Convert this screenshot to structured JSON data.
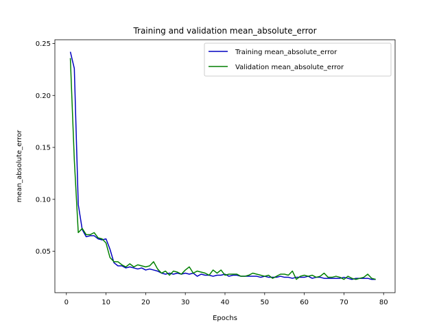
{
  "chart_data": {
    "type": "line",
    "title": "Training and validation mean_absolute_error",
    "xlabel": "Epochs",
    "ylabel": "mean_absolute_error",
    "xlim": [
      -2.9,
      82.9
    ],
    "ylim": [
      0.0102,
      0.2536
    ],
    "xticks": [
      0,
      10,
      20,
      30,
      40,
      50,
      60,
      70,
      80
    ],
    "yticks": [
      0.05,
      0.1,
      0.15,
      0.2,
      0.25
    ],
    "ytick_labels": [
      "0.05",
      "0.10",
      "0.15",
      "0.20",
      "0.25"
    ],
    "grid": false,
    "legend_position": "upper-right",
    "series": [
      {
        "name": "Training mean_absolute_error",
        "color": "#0000bf",
        "x": [
          1,
          2,
          3,
          4,
          5,
          6,
          7,
          8,
          9,
          10,
          11,
          12,
          13,
          14,
          15,
          16,
          17,
          18,
          19,
          20,
          21,
          22,
          23,
          24,
          25,
          26,
          27,
          28,
          29,
          30,
          31,
          32,
          33,
          34,
          35,
          36,
          37,
          38,
          39,
          40,
          41,
          42,
          43,
          44,
          45,
          46,
          47,
          48,
          49,
          50,
          51,
          52,
          53,
          54,
          55,
          56,
          57,
          58,
          59,
          60,
          61,
          62,
          63,
          64,
          65,
          66,
          67,
          68,
          69,
          70,
          71,
          72,
          73,
          74,
          75,
          76,
          77,
          78
        ],
        "values": [
          0.242,
          0.226,
          0.095,
          0.071,
          0.064,
          0.065,
          0.065,
          0.062,
          0.061,
          0.062,
          0.052,
          0.039,
          0.036,
          0.036,
          0.034,
          0.035,
          0.034,
          0.033,
          0.034,
          0.032,
          0.033,
          0.032,
          0.031,
          0.029,
          0.028,
          0.029,
          0.028,
          0.029,
          0.028,
          0.029,
          0.028,
          0.029,
          0.026,
          0.028,
          0.027,
          0.027,
          0.026,
          0.027,
          0.027,
          0.028,
          0.026,
          0.027,
          0.027,
          0.026,
          0.026,
          0.026,
          0.026,
          0.026,
          0.025,
          0.026,
          0.025,
          0.025,
          0.025,
          0.026,
          0.025,
          0.025,
          0.024,
          0.025,
          0.025,
          0.025,
          0.026,
          0.024,
          0.025,
          0.025,
          0.024,
          0.024,
          0.024,
          0.024,
          0.024,
          0.025,
          0.024,
          0.023,
          0.024,
          0.024,
          0.024,
          0.024,
          0.023,
          0.023
        ]
      },
      {
        "name": "Validation mean_absolute_error",
        "color": "#007f00",
        "x": [
          1,
          2,
          3,
          4,
          5,
          6,
          7,
          8,
          9,
          10,
          11,
          12,
          13,
          14,
          15,
          16,
          17,
          18,
          19,
          20,
          21,
          22,
          23,
          24,
          25,
          26,
          27,
          28,
          29,
          30,
          31,
          32,
          33,
          34,
          35,
          36,
          37,
          38,
          39,
          40,
          41,
          42,
          43,
          44,
          45,
          46,
          47,
          48,
          49,
          50,
          51,
          52,
          53,
          54,
          55,
          56,
          57,
          58,
          59,
          60,
          61,
          62,
          63,
          64,
          65,
          66,
          67,
          68,
          69,
          70,
          71,
          72,
          73,
          74,
          75,
          76,
          77,
          78
        ],
        "values": [
          0.236,
          0.138,
          0.068,
          0.072,
          0.066,
          0.066,
          0.068,
          0.063,
          0.062,
          0.058,
          0.044,
          0.04,
          0.04,
          0.037,
          0.035,
          0.038,
          0.035,
          0.037,
          0.036,
          0.035,
          0.036,
          0.04,
          0.033,
          0.029,
          0.031,
          0.027,
          0.031,
          0.03,
          0.028,
          0.032,
          0.035,
          0.029,
          0.031,
          0.03,
          0.029,
          0.027,
          0.032,
          0.029,
          0.032,
          0.027,
          0.028,
          0.028,
          0.028,
          0.026,
          0.026,
          0.027,
          0.029,
          0.028,
          0.027,
          0.026,
          0.027,
          0.024,
          0.026,
          0.028,
          0.028,
          0.027,
          0.031,
          0.023,
          0.026,
          0.027,
          0.026,
          0.027,
          0.025,
          0.026,
          0.029,
          0.025,
          0.025,
          0.026,
          0.025,
          0.023,
          0.026,
          0.024,
          0.023,
          0.024,
          0.025,
          0.028,
          0.024,
          0.023
        ]
      }
    ]
  }
}
